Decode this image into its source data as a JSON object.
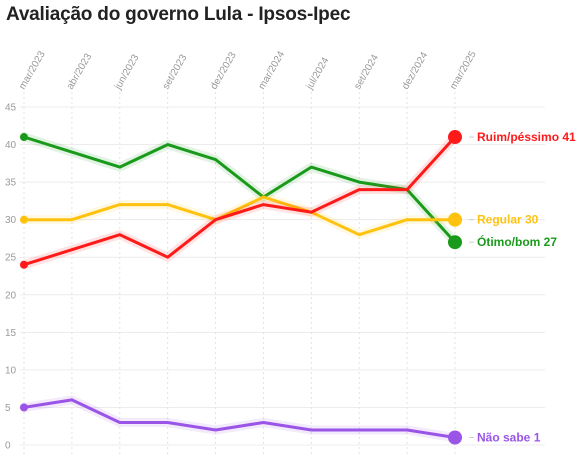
{
  "chart_data": {
    "type": "line",
    "title": "Avaliação do governo Lula - Ipsos-Ipec",
    "x": [
      "mar/2023",
      "abr/2023",
      "jun/2023",
      "set/2023",
      "dez/2023",
      "mar/2024",
      "jul/2024",
      "set/2024",
      "dez/2024",
      "mar/2025"
    ],
    "x_tick_labels": [
      "mar/2023",
      "abr/2023",
      "jun/2023",
      "set/2023",
      "dez/2023",
      "mar/2024",
      "jul/2024",
      "set/2024",
      "dez/2024",
      "mar/2025"
    ],
    "ylim": [
      0,
      45
    ],
    "y_ticks": [
      0,
      5,
      10,
      15,
      20,
      25,
      30,
      35,
      40,
      45
    ],
    "grid": true,
    "series": [
      {
        "name": "Ótimo/bom",
        "color": "#1a9a1a",
        "values": [
          41,
          39,
          37,
          40,
          38,
          33,
          37,
          35,
          34,
          27
        ],
        "end_label": "Ótimo/bom 27"
      },
      {
        "name": "Regular",
        "color": "#ffc20e",
        "values": [
          30,
          30,
          32,
          32,
          30,
          33,
          31,
          28,
          30,
          30
        ],
        "end_label": "Regular 30"
      },
      {
        "name": "Ruim/péssimo",
        "color": "#ff1a1a",
        "values": [
          24,
          26,
          28,
          25,
          30,
          32,
          31,
          34,
          34,
          41
        ],
        "end_label": "Ruim/péssimo 41"
      },
      {
        "name": "Não sabe",
        "color": "#9a55e6",
        "values": [
          5,
          6,
          3,
          3,
          2,
          3,
          2,
          2,
          2,
          1
        ],
        "end_label": "Não sabe 1"
      }
    ]
  }
}
